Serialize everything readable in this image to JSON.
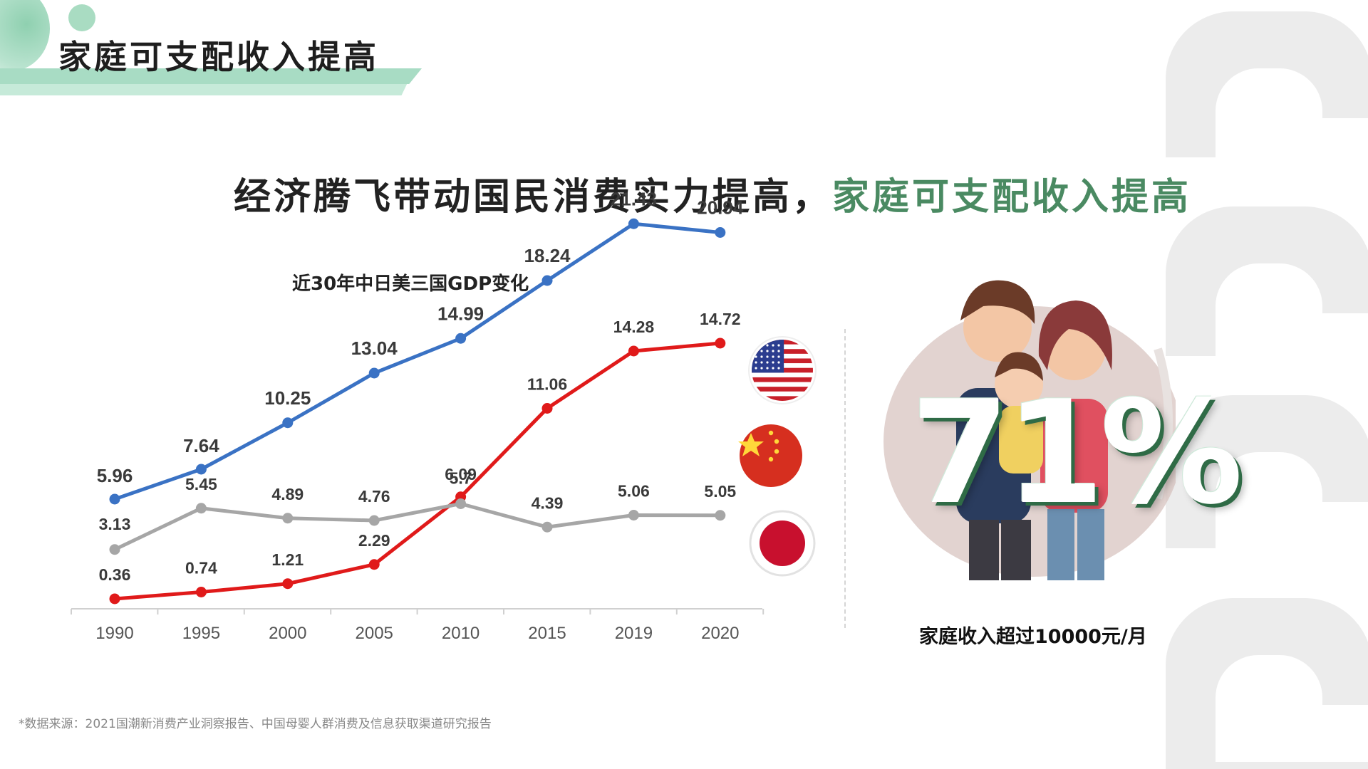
{
  "header": {
    "title": "家庭可支配收入提高"
  },
  "headline": {
    "main": "经济腾飞带动国民消费实力提高，",
    "accent": "家庭可支配收入提高"
  },
  "chart_title": "近30年中日美三国GDP变化",
  "chart_data": {
    "type": "line",
    "title": "近30年中日美三国GDP变化",
    "categories": [
      "1990",
      "1995",
      "2000",
      "2005",
      "2010",
      "2015",
      "2019",
      "2020"
    ],
    "ylim": [
      0,
      24
    ],
    "grid": false,
    "series": [
      {
        "name": "USA",
        "color": "#3a72c4",
        "values": [
          5.96,
          7.64,
          10.25,
          13.04,
          14.99,
          18.24,
          21.43,
          20.94
        ],
        "labels": [
          "5.96",
          "7.64",
          "10.25",
          "13.04",
          "14.99",
          "18.24",
          "21.43",
          "20.94"
        ]
      },
      {
        "name": "China",
        "color": "#e01a1a",
        "values": [
          0.36,
          0.74,
          1.21,
          2.29,
          6.09,
          11.06,
          14.28,
          14.72
        ],
        "labels": [
          "0.36",
          "0.74",
          "1.21",
          "2.29",
          "6.09",
          "11.06",
          "14.28",
          "14.72"
        ]
      },
      {
        "name": "Japan",
        "color": "#a6a6a6",
        "values": [
          3.13,
          5.45,
          4.89,
          4.76,
          5.7,
          4.39,
          5.06,
          5.05
        ],
        "labels": [
          "3.13",
          "5.45",
          "4.89",
          "4.76",
          "5.7",
          "4.39",
          "5.06",
          "5.05"
        ]
      }
    ]
  },
  "flags": [
    "usa-flag-icon",
    "china-flag-icon",
    "japan-flag-icon"
  ],
  "stat": {
    "value": "71%",
    "caption": "家庭收入超过10000元/月"
  },
  "source": "*数据来源：2021国潮新消费产业洞察报告、中国母婴人群消费及信息获取渠道研究报告"
}
